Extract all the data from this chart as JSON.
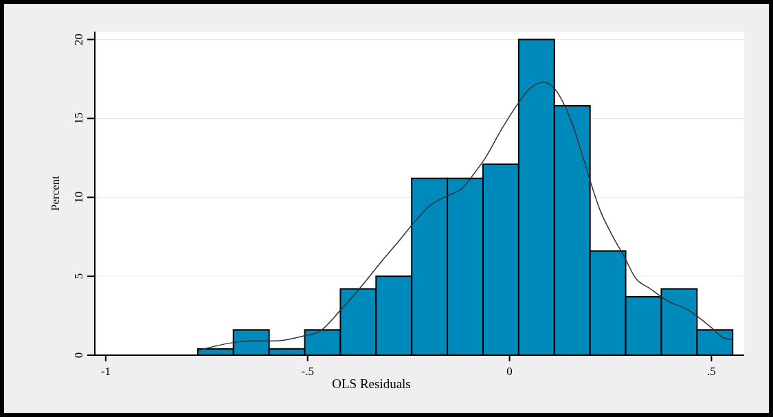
{
  "chart_data": {
    "type": "histogram",
    "xlabel": "OLS Residuals",
    "ylabel": "Percent",
    "bins": [
      -0.772,
      -0.6837,
      -0.5954,
      -0.5071,
      -0.4188,
      -0.3305,
      -0.2422,
      -0.1539,
      -0.0656,
      0.0227,
      0.111,
      0.1993,
      0.2876,
      0.3759,
      0.4642,
      0.5525
    ],
    "series": [
      {
        "color": "#0089bb",
        "values": [
          0.4,
          1.6,
          0.4,
          1.6,
          4.2,
          5.0,
          11.2,
          11.2,
          12.1,
          20,
          15.8,
          6.6,
          3.7,
          4.2,
          1.6
        ]
      },
      {
        "type": "line",
        "color": "#333333",
        "x": [
          -0.77,
          -0.684,
          -0.641,
          -0.581,
          -0.513,
          -0.471,
          -0.417,
          -0.372,
          -0.315,
          -0.275,
          -0.243,
          -0.196,
          -0.153,
          -0.116,
          -0.088,
          -0.06,
          -0.02,
          0.02,
          0.043,
          0.085,
          0.111,
          0.133,
          0.156,
          0.179,
          0.199,
          0.224,
          0.252,
          0.287,
          0.309,
          0.349,
          0.394,
          0.44,
          0.468,
          0.502,
          0.53,
          0.55
        ],
        "values": [
          0.3,
          0.8,
          0.9,
          0.9,
          1.2,
          1.5,
          2.9,
          4.2,
          6.0,
          7.2,
          8.2,
          9.5,
          10.1,
          10.6,
          11.5,
          12.5,
          14.3,
          15.9,
          16.7,
          17.3,
          16.9,
          16.0,
          14.6,
          12.8,
          11.1,
          9.2,
          7.7,
          6.1,
          5.0,
          4.2,
          3.4,
          2.9,
          2.4,
          1.7,
          1.1,
          1.0
        ]
      }
    ],
    "xlim": [
      -1.027,
      0.581
    ],
    "ylim": [
      0,
      20.5
    ],
    "xticks": [
      {
        "value": -1,
        "label": "-1"
      },
      {
        "value": -0.5,
        "label": "-.5"
      },
      0,
      {
        "value": 0.5,
        "label": ".5"
      }
    ],
    "yticks": [
      0,
      5,
      10,
      15,
      20
    ],
    "grid": "y",
    "line_style": "solid",
    "marker": "none"
  }
}
